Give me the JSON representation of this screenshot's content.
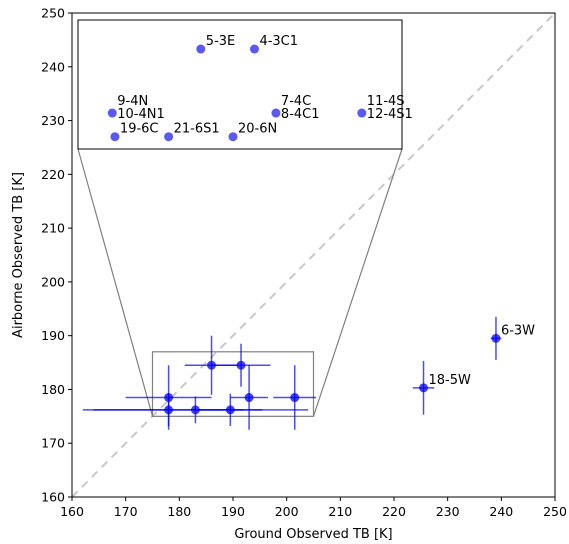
{
  "chart_data": {
    "type": "scatter",
    "xlabel": "Ground Observed TB [K]",
    "ylabel": "Airborne Observed TB [K]",
    "xlim": [
      160,
      250
    ],
    "ylim": [
      160,
      250
    ],
    "xticks": [
      160,
      170,
      180,
      190,
      200,
      210,
      220,
      230,
      240,
      250
    ],
    "yticks": [
      160,
      170,
      180,
      190,
      200,
      210,
      220,
      230,
      240,
      250
    ],
    "reference_line": "1:1 dashed",
    "points": [
      {
        "x": 178.0,
        "y": 178.5,
        "xerr": 8.0,
        "yerr": 6.0
      },
      {
        "x": 178.0,
        "y": 176.2,
        "xerr": 14.0,
        "yerr": 3.0
      },
      {
        "x": 183.0,
        "y": 176.2,
        "xerr": 21.0,
        "yerr": 2.5
      },
      {
        "x": 186.0,
        "y": 184.5,
        "xerr": 5.0,
        "yerr": 5.5
      },
      {
        "x": 189.5,
        "y": 176.2,
        "xerr": 6.0,
        "yerr": 3.0
      },
      {
        "x": 191.5,
        "y": 184.5,
        "xerr": 5.5,
        "yerr": 4.0
      },
      {
        "x": 193.0,
        "y": 178.5,
        "xerr": 3.5,
        "yerr": 6.0
      },
      {
        "x": 201.5,
        "y": 178.5,
        "xerr": 4.0,
        "yerr": 6.0
      },
      {
        "x": 225.5,
        "y": 180.3,
        "xerr": 2.0,
        "yerr": 5.0,
        "label": "18-5W"
      },
      {
        "x": 239.0,
        "y": 189.5,
        "xerr": 1.0,
        "yerr": 4.0,
        "label": "6-3W"
      }
    ],
    "inset": {
      "zoom_region": {
        "xlim": [
          175,
          205
        ],
        "ylim": [
          175,
          187
        ]
      },
      "points": [
        {
          "x": 184.0,
          "y": 243.3,
          "label": "5-3E"
        },
        {
          "x": 194.0,
          "y": 243.3,
          "label": "4-3C1"
        },
        {
          "x": 167.5,
          "y": 231.4,
          "label": "9-4N\n10-4N1"
        },
        {
          "x": 198.0,
          "y": 231.4,
          "label": "7-4C\n8-4C1"
        },
        {
          "x": 214.0,
          "y": 231.4,
          "label": "11-4S\n12-4S1"
        },
        {
          "x": 168.0,
          "y": 227.0,
          "label": "19-6C"
        },
        {
          "x": 178.0,
          "y": 227.0,
          "label": "21-6S1"
        },
        {
          "x": 190.0,
          "y": 227.0,
          "label": "20-6N"
        }
      ]
    },
    "colors": {
      "marker": "#0000ee",
      "reference": "#c8c8c8",
      "inset_border": "#000000",
      "zoom_lines": "#808080"
    }
  }
}
